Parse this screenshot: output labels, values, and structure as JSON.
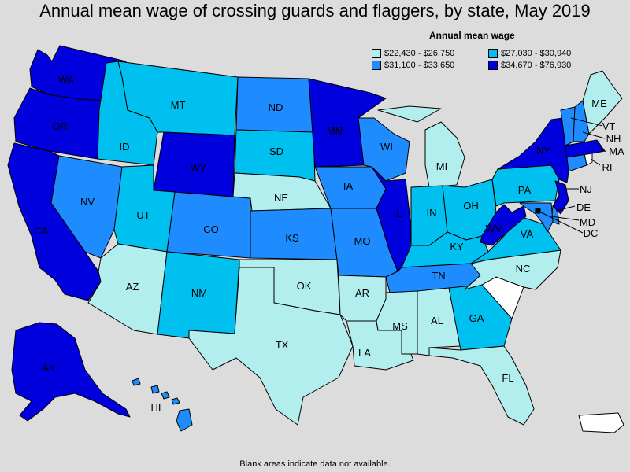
{
  "title": "Annual mean wage of crossing guards and flaggers, by state, May 2019",
  "legend": {
    "title": "Annual mean wage",
    "items": [
      {
        "label": "$22,430 - $26,750",
        "color": "#b2eeee"
      },
      {
        "label": "$27,030 - $30,940",
        "color": "#00c0f0"
      },
      {
        "label": "$31,100 - $33,650",
        "color": "#1e8cff"
      },
      {
        "label": "$34,670 - $76,930",
        "color": "#0000dd"
      }
    ]
  },
  "footnote": "Blank areas indicate data not available.",
  "colors": {
    "bin1": "#b2eeee",
    "bin2": "#00c0f0",
    "bin3": "#1e8cff",
    "bin4": "#0000dd",
    "no_data": "#ffffff",
    "background": "#dcdcdc"
  },
  "states": {
    "WA": "bin4",
    "OR": "bin4",
    "CA": "bin4",
    "AK": "bin4",
    "WY": "bin4",
    "MN": "bin4",
    "IL": "bin4",
    "NY": "bin4",
    "NJ": "bin4",
    "MA": "bin4",
    "WV": "bin4",
    "NV": "bin3",
    "CO": "bin3",
    "ND": "bin3",
    "IA": "bin3",
    "KS": "bin3",
    "MO": "bin3",
    "WI": "bin3",
    "TN": "bin3",
    "CT": "bin3",
    "HI": "bin3",
    "MD": "bin3",
    "DE": "bin3",
    "VT": "bin3",
    "NH": "bin3",
    "ID": "bin2",
    "MT": "bin2",
    "UT": "bin2",
    "NM": "bin2",
    "SD": "bin2",
    "IN": "bin2",
    "OH": "bin2",
    "KY": "bin2",
    "VA": "bin2",
    "PA": "bin2",
    "GA": "bin2",
    "DC": "bin2",
    "AZ": "bin1",
    "NE": "bin1",
    "OK": "bin1",
    "TX": "bin1",
    "AR": "bin1",
    "LA": "bin1",
    "MS": "bin1",
    "AL": "bin1",
    "FL": "bin1",
    "MI": "bin1",
    "NC": "bin1",
    "ME": "bin1",
    "SC": "no_data",
    "RI": "no_data",
    "PR": "no_data"
  },
  "labels": {
    "WA": "WA",
    "OR": "OR",
    "CA": "CA",
    "ID": "ID",
    "NV": "NV",
    "MT": "MT",
    "WY": "WY",
    "UT": "UT",
    "AZ": "AZ",
    "CO": "CO",
    "NM": "NM",
    "ND": "ND",
    "SD": "SD",
    "NE": "NE",
    "KS": "KS",
    "OK": "OK",
    "TX": "TX",
    "MN": "MN",
    "IA": "IA",
    "MO": "MO",
    "AR": "AR",
    "LA": "LA",
    "WI": "WI",
    "IL": "IL",
    "MI": "MI",
    "IN": "IN",
    "OH": "OH",
    "KY": "KY",
    "TN": "TN",
    "MS": "MS",
    "AL": "AL",
    "GA": "GA",
    "FL": "FL",
    "NC": "NC",
    "VA": "VA",
    "WV": "WV",
    "PA": "PA",
    "NY": "NY",
    "ME": "ME",
    "VT": "VT",
    "NH": "NH",
    "MA": "MA",
    "RI": "RI",
    "NJ": "NJ",
    "DE": "DE",
    "MD": "MD",
    "DC": "DC",
    "AK": "AK",
    "HI": "HI"
  }
}
